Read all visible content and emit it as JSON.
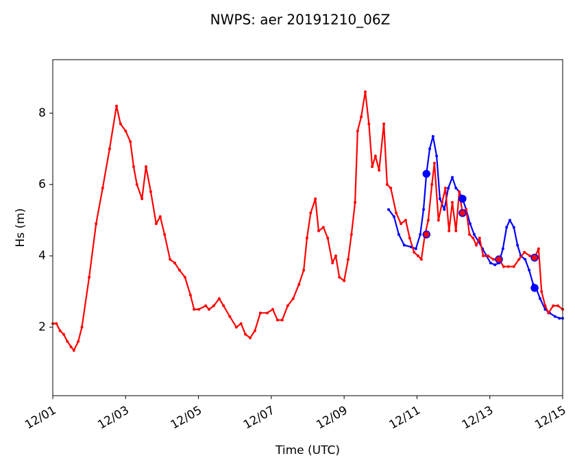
{
  "chart_data": {
    "type": "line",
    "title": "NWPS: aer 20191210_06Z",
    "x_label": "Time (UTC)",
    "y_label": "Hs (m)",
    "xlim": [
      0,
      14
    ],
    "ylim": [
      0.08,
      9.5
    ],
    "xticks": [
      {
        "value": 0,
        "label": "12/01"
      },
      {
        "value": 2,
        "label": "12/03"
      },
      {
        "value": 4,
        "label": "12/05"
      },
      {
        "value": 6,
        "label": "12/07"
      },
      {
        "value": 8,
        "label": "12/09"
      },
      {
        "value": 10,
        "label": "12/11"
      },
      {
        "value": 12,
        "label": "12/13"
      },
      {
        "value": 14,
        "label": "12/15"
      }
    ],
    "yticks": [
      2,
      4,
      6,
      8
    ],
    "grid": false,
    "series": [
      {
        "style": "line",
        "color": "#0000ff",
        "x": [
          9.22,
          9.37,
          9.5,
          9.65,
          9.84,
          9.97,
          10.09,
          10.18,
          10.26,
          10.35,
          10.44,
          10.54,
          10.63,
          10.75,
          10.86,
          10.97,
          11.07,
          11.16,
          11.25,
          11.35,
          11.46,
          11.57,
          11.69,
          11.8,
          11.91,
          12.02,
          12.14,
          12.25,
          12.36,
          12.46,
          12.55,
          12.66,
          12.76,
          12.85,
          12.97,
          13.08,
          13.19,
          13.27,
          13.38,
          13.52,
          13.64,
          13.79,
          13.91,
          14.0
        ],
        "values": [
          5.3,
          5.1,
          4.6,
          4.3,
          4.25,
          4.2,
          4.6,
          5.3,
          6.3,
          7.0,
          7.35,
          6.8,
          5.6,
          5.3,
          5.9,
          6.2,
          5.9,
          5.8,
          5.6,
          5.3,
          4.9,
          4.6,
          4.4,
          4.2,
          4.0,
          3.8,
          3.75,
          3.8,
          4.2,
          4.8,
          5.0,
          4.8,
          4.3,
          4.0,
          3.9,
          3.6,
          3.2,
          3.1,
          2.8,
          2.5,
          2.4,
          2.3,
          2.25,
          2.25
        ]
      },
      {
        "style": "line",
        "color": "#ff0000",
        "x": [
          0,
          0.1,
          0.2,
          0.3,
          0.4,
          0.5,
          0.58,
          0.7,
          0.8,
          1.0,
          1.19,
          1.37,
          1.56,
          1.75,
          1.86,
          2.0,
          2.13,
          2.22,
          2.31,
          2.45,
          2.56,
          2.69,
          2.84,
          2.95,
          3.07,
          3.22,
          3.35,
          3.48,
          3.63,
          3.78,
          3.88,
          4.01,
          4.2,
          4.29,
          4.42,
          4.57,
          4.69,
          4.86,
          5.04,
          5.17,
          5.29,
          5.42,
          5.55,
          5.7,
          5.89,
          6.04,
          6.17,
          6.3,
          6.45,
          6.6,
          6.76,
          6.89,
          6.98,
          7.08,
          7.21,
          7.3,
          7.43,
          7.55,
          7.68,
          7.77,
          7.87,
          8.0,
          8.11,
          8.2,
          8.3,
          8.37,
          8.47,
          8.58,
          8.68,
          8.77,
          8.86,
          8.96,
          9.09,
          9.18,
          9.28,
          9.43,
          9.56,
          9.69,
          9.8,
          9.92,
          10.03,
          10.12,
          10.22,
          10.31,
          10.41,
          10.48,
          10.59,
          10.69,
          10.78,
          10.88,
          10.97,
          11.07,
          11.16,
          11.25,
          11.35,
          11.44,
          11.54,
          11.63,
          11.72,
          11.82,
          11.95,
          12.1,
          12.25,
          12.38,
          12.51,
          12.66,
          12.8,
          12.95,
          13.1,
          13.23,
          13.34,
          13.42,
          13.52,
          13.61,
          13.74,
          13.87,
          14.0
        ],
        "values": [
          2.1,
          2.1,
          1.9,
          1.8,
          1.6,
          1.45,
          1.35,
          1.6,
          2.0,
          3.4,
          4.9,
          5.9,
          7.0,
          8.2,
          7.7,
          7.5,
          7.2,
          6.5,
          6.0,
          5.6,
          6.5,
          5.8,
          4.9,
          5.1,
          4.6,
          3.9,
          3.8,
          3.6,
          3.4,
          2.9,
          2.5,
          2.5,
          2.6,
          2.5,
          2.6,
          2.8,
          2.6,
          2.3,
          2.0,
          2.1,
          1.8,
          1.7,
          1.9,
          2.4,
          2.4,
          2.5,
          2.2,
          2.2,
          2.6,
          2.8,
          3.2,
          3.6,
          4.5,
          5.2,
          5.6,
          4.7,
          4.8,
          4.5,
          3.8,
          4.0,
          3.4,
          3.3,
          3.9,
          4.6,
          5.5,
          7.5,
          7.9,
          8.6,
          7.7,
          6.5,
          6.8,
          6.4,
          7.7,
          6.0,
          5.9,
          5.2,
          4.9,
          5.0,
          4.5,
          4.1,
          4.0,
          3.9,
          4.6,
          5.0,
          6.0,
          6.6,
          5.0,
          5.5,
          5.9,
          4.7,
          5.5,
          4.7,
          5.8,
          5.2,
          5.3,
          4.6,
          4.5,
          4.3,
          4.5,
          4.0,
          4.0,
          3.9,
          3.9,
          3.7,
          3.7,
          3.7,
          3.9,
          4.1,
          4.0,
          3.95,
          4.2,
          3.0,
          2.6,
          2.4,
          2.6,
          2.6,
          2.5
        ]
      },
      {
        "style": "markers",
        "color": "#0000ff",
        "edge": "#0000ff",
        "x": [
          10.26,
          11.25,
          12.25,
          13.23
        ],
        "values": [
          6.3,
          5.6,
          3.9,
          3.1
        ]
      },
      {
        "style": "markers",
        "color": "#ff0000",
        "edge": "#0000ff",
        "x": [
          10.26,
          11.25,
          12.25,
          13.23
        ],
        "values": [
          4.6,
          5.2,
          3.9,
          3.95
        ]
      }
    ]
  }
}
